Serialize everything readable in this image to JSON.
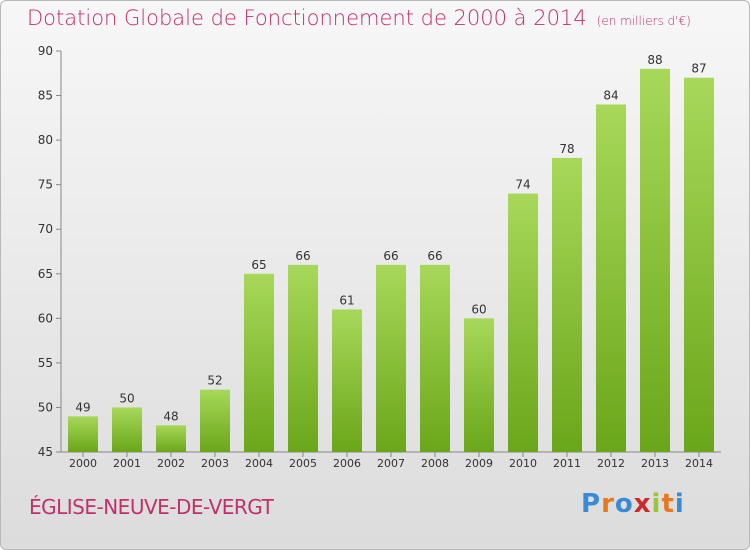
{
  "header": {
    "title": "Dotation Globale de Fonctionnement de 2000 à 2014",
    "subtitle": "(en milliers d'€)"
  },
  "footer": {
    "commune": "ÉGLISE-NEUVE-DE-VERGT",
    "logo_text": "Proxiti"
  },
  "colors": {
    "title": "#c0306a",
    "bar_light": "#a8d85a",
    "bar_dark": "#6aa61a",
    "logo_letters": [
      "#3a8ad6",
      "#e8781e",
      "#3a8ad6",
      "#cc2a2a",
      "#9ac43a",
      "#e8781e",
      "#3a8ad6"
    ]
  },
  "chart_data": {
    "type": "bar",
    "categories": [
      "2000",
      "2001",
      "2002",
      "2003",
      "2004",
      "2005",
      "2006",
      "2007",
      "2008",
      "2009",
      "2010",
      "2011",
      "2012",
      "2013",
      "2014"
    ],
    "values": [
      49,
      50,
      48,
      52,
      65,
      66,
      61,
      66,
      66,
      60,
      74,
      78,
      84,
      88,
      87
    ],
    "ylim": [
      45,
      90
    ],
    "yticks": [
      45,
      50,
      55,
      60,
      65,
      70,
      75,
      80,
      85,
      90
    ],
    "grid": false,
    "data_labels": true
  }
}
